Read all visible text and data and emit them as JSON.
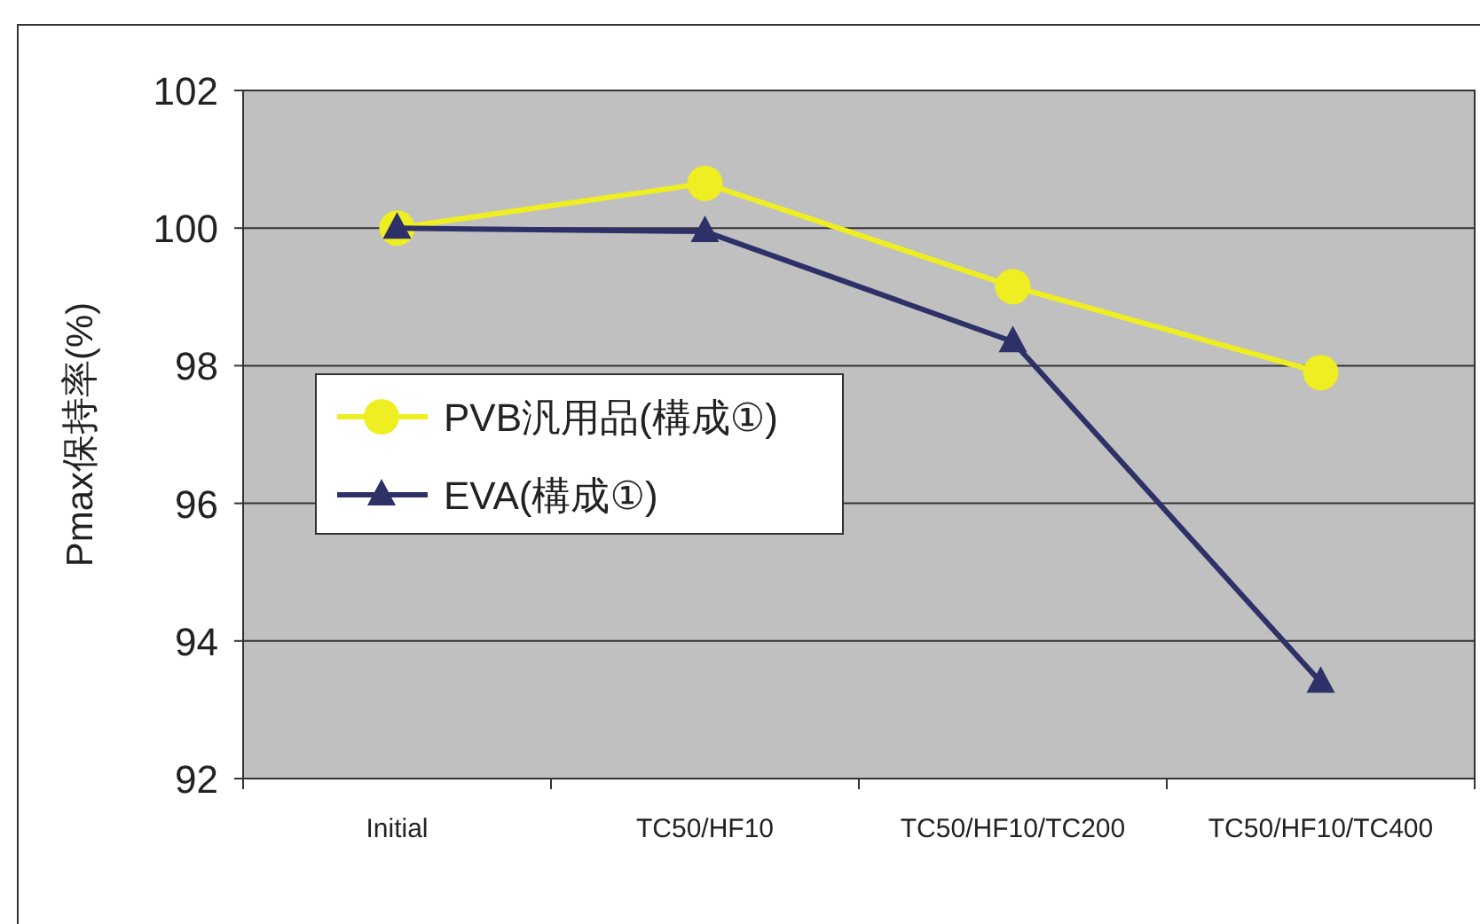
{
  "chart_data": {
    "type": "line",
    "ylabel": "Pmax保持率(%)",
    "categories": [
      "Initial",
      "TC50/HF10",
      "TC50/HF10/TC200",
      "TC50/HF10/TC400"
    ],
    "series": [
      {
        "name": "PVB汎用品(構成①)",
        "color": "#eeee22",
        "marker": "circle",
        "values": [
          100,
          100.65,
          99.15,
          97.9
        ]
      },
      {
        "name": "EVA(構成①)",
        "color": "#2e3068",
        "marker": "triangle",
        "values": [
          100,
          99.95,
          98.35,
          93.4
        ]
      }
    ],
    "ylim": [
      92,
      102
    ],
    "yticks": [
      92,
      94,
      96,
      98,
      100,
      102
    ],
    "grid": "y",
    "legend": "left"
  }
}
